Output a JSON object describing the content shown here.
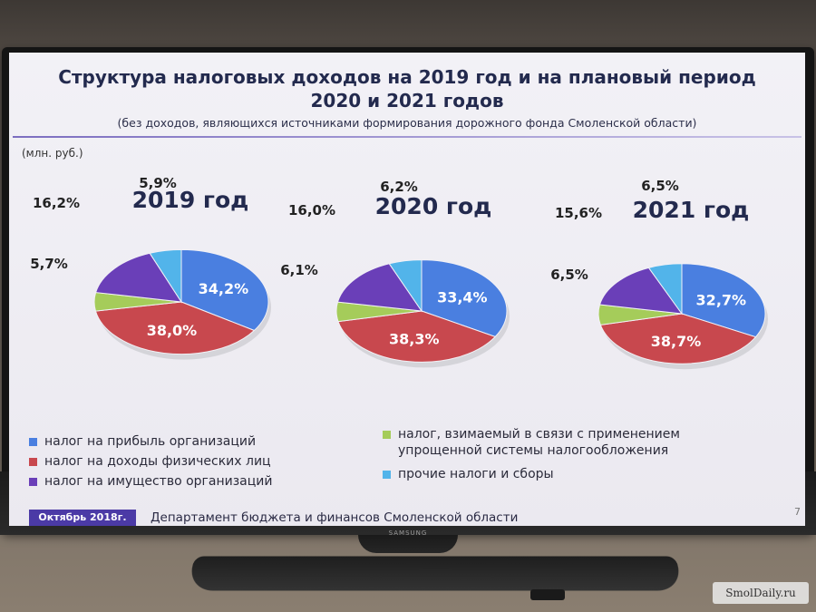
{
  "slide": {
    "title_line1": "Структура налоговых доходов на 2019 год и на плановый период",
    "title_line2": "2020 и 2021 годов",
    "subtitle": "(без доходов, являющихся источниками формирования дорожного фонда Смоленской области)",
    "units": "(млн. руб.)",
    "footer_date": "Октябрь 2018г.",
    "footer_department": "Департамент бюджета и финансов Смоленской области",
    "page_number": "7",
    "tv_brand": "SAMSUNG"
  },
  "watermark": "SmolDaily.ru",
  "colors": {
    "profit_tax": "#4a7fe0",
    "personal_income_tax": "#c8484e",
    "simplified_tax": "#a5cc5a",
    "property_tax": "#6a3fb8",
    "other_taxes": "#52b4ea",
    "accent": "#4b3aa6"
  },
  "legend": [
    {
      "key": "profit_tax",
      "label": "налог на прибыль организаций"
    },
    {
      "key": "personal_income_tax",
      "label": "налог на доходы физических лиц"
    },
    {
      "key": "property_tax",
      "label": "налог на имущество организаций"
    },
    {
      "key": "simplified_tax",
      "label_line1": "налог, взимаемый в связи с применением",
      "label_line2": "упрощенной системы налогообложения"
    },
    {
      "key": "other_taxes",
      "label": "прочие налоги и сборы"
    }
  ],
  "chart_data": [
    {
      "type": "pie",
      "title": "2019 год",
      "slices": [
        {
          "key": "profit_tax",
          "value": 34.2,
          "label": "34,2%"
        },
        {
          "key": "personal_income_tax",
          "value": 38.0,
          "label": "38,0%"
        },
        {
          "key": "simplified_tax",
          "value": 5.7,
          "label": "5,7%"
        },
        {
          "key": "property_tax",
          "value": 16.2,
          "label": "16,2%"
        },
        {
          "key": "other_taxes",
          "value": 5.9,
          "label": "5,9%"
        }
      ]
    },
    {
      "type": "pie",
      "title": "2020 год",
      "slices": [
        {
          "key": "profit_tax",
          "value": 33.4,
          "label": "33,4%"
        },
        {
          "key": "personal_income_tax",
          "value": 38.3,
          "label": "38,3%"
        },
        {
          "key": "simplified_tax",
          "value": 6.1,
          "label": "6,1%"
        },
        {
          "key": "property_tax",
          "value": 16.0,
          "label": "16,0%"
        },
        {
          "key": "other_taxes",
          "value": 6.2,
          "label": "6,2%"
        }
      ]
    },
    {
      "type": "pie",
      "title": "2021 год",
      "slices": [
        {
          "key": "profit_tax",
          "value": 32.7,
          "label": "32,7%"
        },
        {
          "key": "personal_income_tax",
          "value": 38.7,
          "label": "38,7%"
        },
        {
          "key": "simplified_tax",
          "value": 6.5,
          "label": "6,5%"
        },
        {
          "key": "property_tax",
          "value": 15.6,
          "label": "15,6%"
        },
        {
          "key": "other_taxes",
          "value": 6.5,
          "label": "6,5%"
        }
      ]
    }
  ]
}
